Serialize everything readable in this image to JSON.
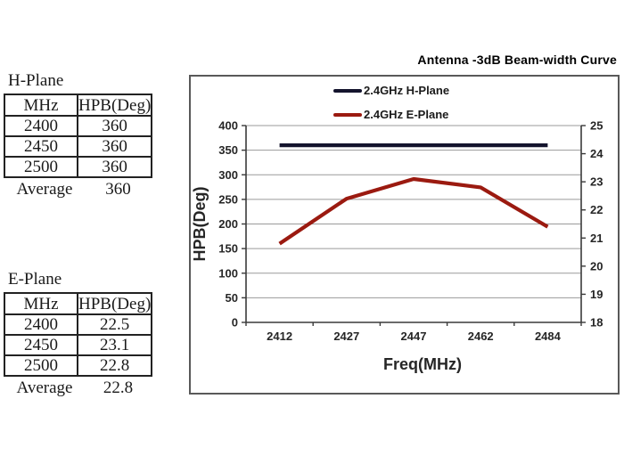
{
  "tables": {
    "h_plane": {
      "title": "H-Plane",
      "headers": [
        "MHz",
        "HPB(Deg)"
      ],
      "rows": [
        [
          "2400",
          "360"
        ],
        [
          "2450",
          "360"
        ],
        [
          "2500",
          "360"
        ]
      ],
      "average_label": "Average",
      "average_value": "360"
    },
    "e_plane": {
      "title": "E-Plane",
      "headers": [
        "MHz",
        "HPB(Deg)"
      ],
      "rows": [
        [
          "2400",
          "22.5"
        ],
        [
          "2450",
          "23.1"
        ],
        [
          "2500",
          "22.8"
        ]
      ],
      "average_label": "Average",
      "average_value": "22.8"
    }
  },
  "chart_data": {
    "type": "line",
    "title": "Antenna -3dB Beam-width Curve",
    "categories": [
      "2412",
      "2427",
      "2447",
      "2462",
      "2484"
    ],
    "series": [
      {
        "name": "2.4GHz H-Plane",
        "axis": "left",
        "color": "#14142d",
        "values": [
          360,
          360,
          360,
          360,
          360
        ]
      },
      {
        "name": "2.4GHz E-Plane",
        "axis": "right",
        "color": "#9b1a10",
        "values": [
          20.8,
          22.4,
          23.1,
          22.8,
          21.4
        ]
      }
    ],
    "xlabel": "Freq(MHz)",
    "ylabel": "HPB(Deg)",
    "left_axis": {
      "min": 0,
      "max": 400,
      "step": 50,
      "ticks": [
        "400",
        "350",
        "300",
        "250",
        "200",
        "150",
        "100",
        "50",
        "0"
      ]
    },
    "right_axis": {
      "min": 18,
      "max": 25,
      "step": 1,
      "ticks": [
        "25",
        "24",
        "23",
        "22",
        "21",
        "20",
        "19",
        "18"
      ]
    },
    "grid": true,
    "legend_position": "top-center",
    "gridline_color": "#9a9a9a",
    "axis_color": "#3a3a3a",
    "label_color": "#262626"
  }
}
